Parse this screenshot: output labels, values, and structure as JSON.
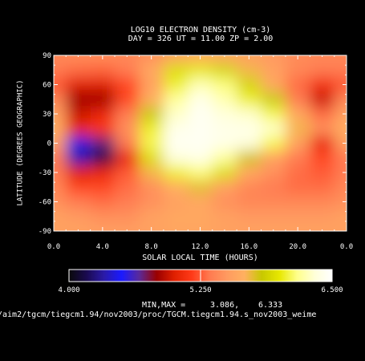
{
  "header": {
    "title": "LOG10 ELECTRON DENSITY (cm-3)",
    "subtitle": "DAY = 326   UT = 11.00   ZP =    2.00"
  },
  "chart_data": {
    "type": "heatmap",
    "title": "LOG10 ELECTRON DENSITY (cm-3)",
    "xlabel": "SOLAR LOCAL TIME (HOURS)",
    "ylabel": "LATITUDE (DEGREES GEOGRAPHIC)",
    "xlim": [
      0,
      24
    ],
    "ylim": [
      -90,
      90
    ],
    "x_ticks": [
      "0.0",
      "4.0",
      "8.0",
      "12.0",
      "16.0",
      "20.0",
      "0.0"
    ],
    "y_ticks": [
      "-90",
      "-60",
      "-30",
      "0",
      "30",
      "60",
      "90"
    ],
    "colorbar": {
      "min": 4.0,
      "max": 6.5,
      "ticks": [
        "4.000",
        "5.250",
        "6.500"
      ],
      "colors": [
        "#0a0a0a",
        "#1a0a50",
        "#2a1aa8",
        "#1a1aff",
        "#5a2a9a",
        "#9a0000",
        "#e02000",
        "#ff3a18",
        "#ff7a50",
        "#ff9a60",
        "#ffb060",
        "#c8c800",
        "#e8e800",
        "#ffff8a",
        "#ffffd8",
        "#ffffff"
      ]
    },
    "x": [
      0,
      2,
      4,
      6,
      8,
      10,
      12,
      14,
      16,
      18,
      20,
      22,
      24
    ],
    "y": [
      90,
      75,
      60,
      45,
      30,
      15,
      0,
      -15,
      -30,
      -45,
      -60,
      -75,
      -90
    ],
    "z": [
      [
        5.4,
        5.42,
        5.42,
        5.4,
        5.45,
        5.55,
        5.6,
        5.58,
        5.55,
        5.5,
        5.42,
        5.4,
        5.4
      ],
      [
        5.35,
        5.3,
        5.28,
        5.35,
        5.6,
        5.95,
        6.0,
        5.9,
        5.7,
        5.55,
        5.4,
        5.35,
        5.35
      ],
      [
        5.25,
        5.0,
        5.0,
        5.2,
        5.55,
        6.05,
        6.25,
        6.15,
        5.9,
        5.6,
        5.3,
        5.1,
        5.25
      ],
      [
        5.4,
        4.85,
        4.85,
        5.2,
        5.65,
        6.2,
        6.4,
        6.25,
        6.05,
        5.85,
        5.35,
        4.95,
        5.4
      ],
      [
        5.55,
        4.95,
        5.05,
        5.35,
        5.85,
        6.3,
        6.45,
        6.35,
        6.3,
        6.1,
        5.6,
        5.3,
        5.55
      ],
      [
        5.65,
        5.05,
        5.15,
        5.45,
        6.05,
        6.4,
        6.45,
        6.4,
        6.4,
        6.3,
        5.7,
        5.45,
        5.65
      ],
      [
        5.55,
        4.55,
        4.7,
        5.35,
        6.1,
        6.45,
        6.45,
        6.4,
        6.35,
        6.1,
        5.55,
        5.05,
        5.55
      ],
      [
        5.35,
        4.35,
        4.15,
        5.05,
        5.95,
        6.35,
        6.4,
        6.2,
        5.8,
        5.55,
        5.35,
        5.2,
        5.35
      ],
      [
        5.35,
        5.0,
        5.05,
        5.25,
        5.7,
        6.05,
        6.15,
        5.95,
        5.6,
        5.45,
        5.3,
        5.25,
        5.35
      ],
      [
        5.4,
        5.2,
        5.2,
        5.3,
        5.45,
        5.65,
        5.75,
        5.55,
        5.4,
        5.35,
        5.3,
        5.3,
        5.4
      ],
      [
        5.45,
        5.35,
        5.3,
        5.35,
        5.45,
        5.55,
        5.6,
        5.45,
        5.4,
        5.4,
        5.4,
        5.4,
        5.45
      ],
      [
        5.55,
        5.5,
        5.45,
        5.45,
        5.55,
        5.6,
        5.6,
        5.55,
        5.5,
        5.5,
        5.5,
        5.5,
        5.55
      ],
      [
        5.55,
        5.55,
        5.52,
        5.52,
        5.55,
        5.58,
        5.58,
        5.55,
        5.55,
        5.55,
        5.55,
        5.55,
        5.55
      ]
    ]
  },
  "footer": {
    "minmax_label": "MIN,MAX =",
    "min": "3.086,",
    "max": "6.333",
    "path": "/aim2/tgcm/tiegcm1.94/nov2003/proc/TGCM.tiegcm1.94.s_nov2003_weime"
  }
}
